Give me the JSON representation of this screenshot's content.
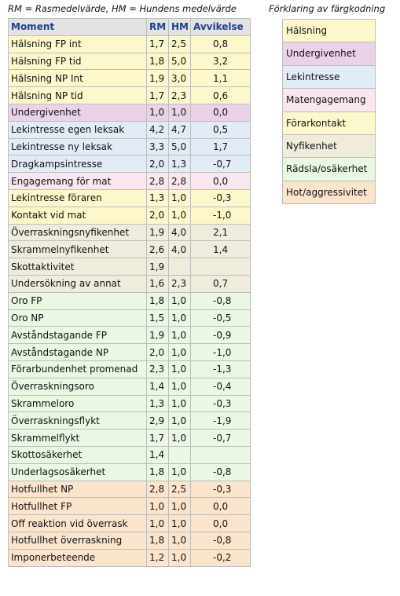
{
  "header": {
    "note": "RM = Rasmedelvärde,    HM = Hundens medelvärde",
    "legend_title": "Förklaring av färgkodning"
  },
  "colors": {
    "halsning": "#fdf8cc",
    "undergivenhet": "#ead3e8",
    "lekintresse": "#e2ecf7",
    "matengagemang": "#f9e6ee",
    "forarkontakt": "#fdf8cc",
    "nyfikenhet": "#f0ecdc",
    "radsla": "#e9f7e3",
    "hot": "#fbe4cc"
  },
  "table": {
    "headers": [
      "Moment",
      "RM",
      "HM",
      "Avvikelse"
    ],
    "rows": [
      {
        "moment": "Hälsning FP int",
        "rm": "1,7",
        "hm": "2,5",
        "avv": "0,8",
        "cat": "halsning"
      },
      {
        "moment": "Hälsning FP tid",
        "rm": "1,8",
        "hm": "5,0",
        "avv": "3,2",
        "cat": "halsning"
      },
      {
        "moment": "Hälsning NP Int",
        "rm": "1,9",
        "hm": "3,0",
        "avv": "1,1",
        "cat": "halsning"
      },
      {
        "moment": "Hälsning NP tid",
        "rm": "1,7",
        "hm": "2,3",
        "avv": "0,6",
        "cat": "halsning"
      },
      {
        "moment": "Undergivenhet",
        "rm": "1,0",
        "hm": "1,0",
        "avv": "0,0",
        "cat": "undergivenhet"
      },
      {
        "moment": "Lekintresse egen leksak",
        "rm": "4,2",
        "hm": "4,7",
        "avv": "0,5",
        "cat": "lekintresse"
      },
      {
        "moment": "Lekintresse ny leksak",
        "rm": "3,3",
        "hm": "5,0",
        "avv": "1,7",
        "cat": "lekintresse"
      },
      {
        "moment": "Dragkampsintresse",
        "rm": "2,0",
        "hm": "1,3",
        "avv": "-0,7",
        "cat": "lekintresse"
      },
      {
        "moment": "Engagemang för mat",
        "rm": "2,8",
        "hm": "2,8",
        "avv": "0,0",
        "cat": "matengagemang"
      },
      {
        "moment": "Lekintresse föraren",
        "rm": "1,3",
        "hm": "1,0",
        "avv": "-0,3",
        "cat": "forarkontakt"
      },
      {
        "moment": "Kontakt vid mat",
        "rm": "2,0",
        "hm": "1,0",
        "avv": "-1,0",
        "cat": "forarkontakt"
      },
      {
        "moment": "Överraskningsnyfikenhet",
        "rm": "1,9",
        "hm": "4,0",
        "avv": "2,1",
        "cat": "nyfikenhet"
      },
      {
        "moment": "Skrammelnyfikenhet",
        "rm": "2,6",
        "hm": "4,0",
        "avv": "1,4",
        "cat": "nyfikenhet"
      },
      {
        "moment": "Skottaktivitet",
        "rm": "1,9",
        "hm": "",
        "avv": "",
        "cat": "nyfikenhet"
      },
      {
        "moment": "Undersökning av annat",
        "rm": "1,6",
        "hm": "2,3",
        "avv": "0,7",
        "cat": "nyfikenhet"
      },
      {
        "moment": "Oro FP",
        "rm": "1,8",
        "hm": "1,0",
        "avv": "-0,8",
        "cat": "radsla"
      },
      {
        "moment": "Oro NP",
        "rm": "1,5",
        "hm": "1,0",
        "avv": "-0,5",
        "cat": "radsla"
      },
      {
        "moment": "Avståndstagande FP",
        "rm": "1,9",
        "hm": "1,0",
        "avv": "-0,9",
        "cat": "radsla"
      },
      {
        "moment": "Avståndstagande NP",
        "rm": "2,0",
        "hm": "1,0",
        "avv": "-1,0",
        "cat": "radsla"
      },
      {
        "moment": "Förarbundenhet promenad",
        "rm": "2,3",
        "hm": "1,0",
        "avv": "-1,3",
        "cat": "radsla"
      },
      {
        "moment": "Överraskningsoro",
        "rm": "1,4",
        "hm": "1,0",
        "avv": "-0,4",
        "cat": "radsla"
      },
      {
        "moment": "Skrammeloro",
        "rm": "1,3",
        "hm": "1,0",
        "avv": "-0,3",
        "cat": "radsla"
      },
      {
        "moment": "Överraskningsflykt",
        "rm": "2,9",
        "hm": "1,0",
        "avv": "-1,9",
        "cat": "radsla"
      },
      {
        "moment": "Skrammelflykt",
        "rm": "1,7",
        "hm": "1,0",
        "avv": "-0,7",
        "cat": "radsla"
      },
      {
        "moment": "Skottosäkerhet",
        "rm": "1,4",
        "hm": "",
        "avv": "",
        "cat": "radsla"
      },
      {
        "moment": "Underlagsosäkerhet",
        "rm": "1,8",
        "hm": "1,0",
        "avv": "-0,8",
        "cat": "radsla"
      },
      {
        "moment": "Hotfullhet NP",
        "rm": "2,8",
        "hm": "2,5",
        "avv": "-0,3",
        "cat": "hot"
      },
      {
        "moment": "Hotfullhet FP",
        "rm": "1,0",
        "hm": "1,0",
        "avv": "0,0",
        "cat": "hot"
      },
      {
        "moment": "Off reaktion vid överrask",
        "rm": "1,0",
        "hm": "1,0",
        "avv": "0,0",
        "cat": "hot"
      },
      {
        "moment": "Hotfullhet överraskning",
        "rm": "1,8",
        "hm": "1,0",
        "avv": "-0,8",
        "cat": "hot"
      },
      {
        "moment": "Imponerbeteende",
        "rm": "1,2",
        "hm": "1,0",
        "avv": "-0,2",
        "cat": "hot"
      }
    ]
  },
  "legend": [
    {
      "label": "Hälsning",
      "cat": "halsning"
    },
    {
      "label": "Undergivenhet",
      "cat": "undergivenhet"
    },
    {
      "label": "Lekintresse",
      "cat": "lekintresse"
    },
    {
      "label": "Matengagemang",
      "cat": "matengagemang"
    },
    {
      "label": "Förarkontakt",
      "cat": "forarkontakt"
    },
    {
      "label": "Nyfikenhet",
      "cat": "nyfikenhet"
    },
    {
      "label": "Rädsla/osäkerhet",
      "cat": "radsla"
    },
    {
      "label": "Hot/aggressivitet",
      "cat": "hot"
    }
  ]
}
